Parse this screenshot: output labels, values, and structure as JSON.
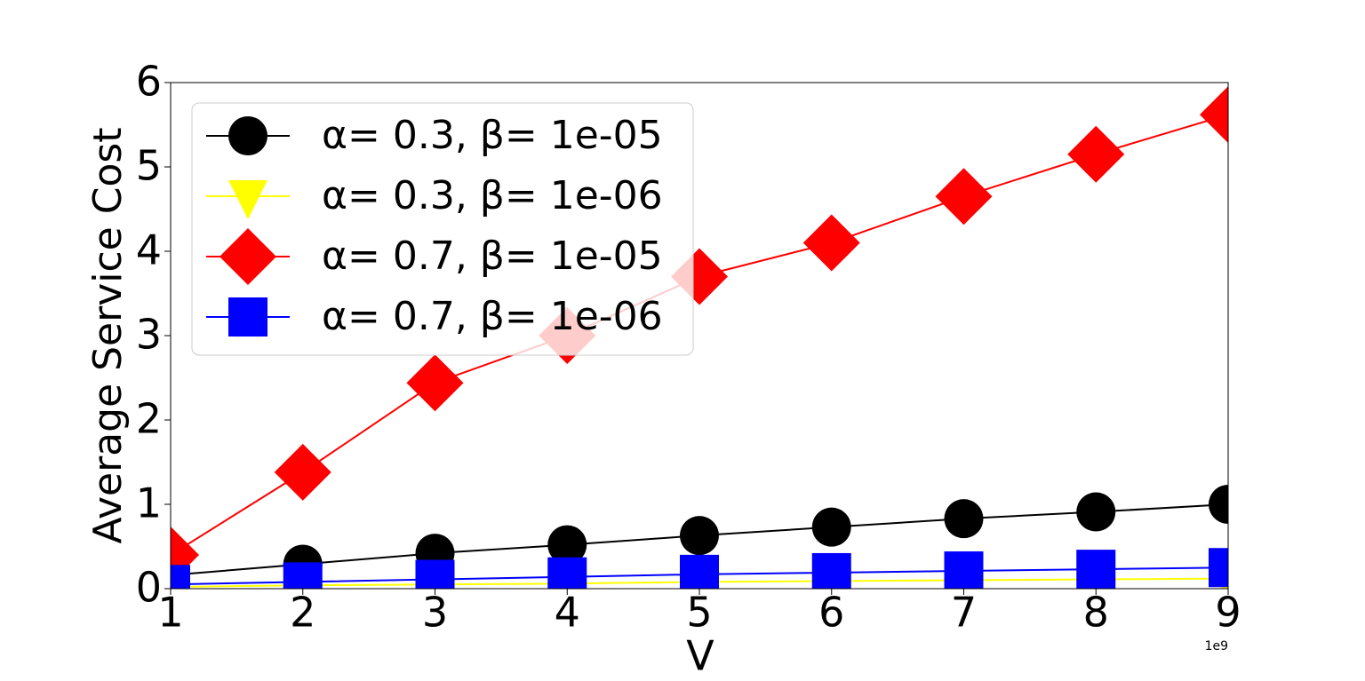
{
  "chart_data": {
    "type": "line",
    "xlabel": "V",
    "ylabel": "Average Service Cost",
    "x_offset_label": "1e9",
    "x": [
      1,
      2,
      3,
      4,
      5,
      6,
      7,
      8,
      9
    ],
    "xlim": [
      1,
      9
    ],
    "xticks": [
      1,
      2,
      3,
      4,
      5,
      6,
      7,
      8,
      9
    ],
    "ylim": [
      0,
      6
    ],
    "yticks": [
      0,
      1,
      2,
      3,
      4,
      5,
      6
    ],
    "legend": "upper left",
    "series": [
      {
        "name": "α= 0.3, β= 1e-05",
        "color": "#000000",
        "marker": "circle",
        "values": [
          0.16,
          0.29,
          0.42,
          0.52,
          0.63,
          0.73,
          0.83,
          0.91,
          1.0
        ]
      },
      {
        "name": "α= 0.3, β= 1e-06",
        "color": "#ffff00",
        "marker": "triangle-down",
        "values": [
          0.02,
          0.04,
          0.05,
          0.06,
          0.08,
          0.09,
          0.1,
          0.11,
          0.12
        ]
      },
      {
        "name": "α= 0.7, β= 1e-05",
        "color": "#ff0000",
        "marker": "diamond",
        "values": [
          0.4,
          1.38,
          2.44,
          3.0,
          3.7,
          4.1,
          4.65,
          5.15,
          5.62
        ]
      },
      {
        "name": "α= 0.7, β= 1e-06",
        "color": "#0000ff",
        "marker": "square",
        "values": [
          0.05,
          0.08,
          0.11,
          0.14,
          0.17,
          0.19,
          0.21,
          0.23,
          0.25
        ]
      }
    ]
  }
}
